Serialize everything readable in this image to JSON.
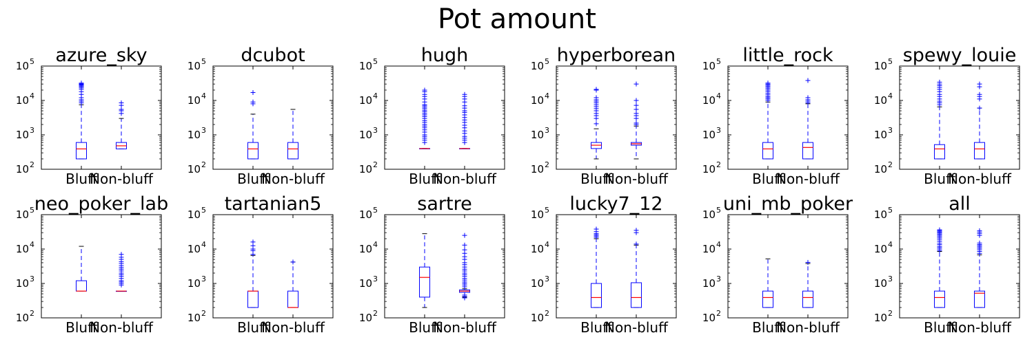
{
  "chart_data": {
    "type": "boxplot",
    "title": "Pot amount",
    "yscale": "log",
    "ylim": [
      100,
      100000
    ],
    "yticks": [
      {
        "base": "10",
        "exp": "2"
      },
      {
        "base": "10",
        "exp": "3"
      },
      {
        "base": "10",
        "exp": "4"
      },
      {
        "base": "10",
        "exp": "5"
      }
    ],
    "categories": [
      "Bluff",
      "Non-bluff"
    ],
    "colors": {
      "box": "#0000ff",
      "median": "#ff0000",
      "axes": "#000000"
    },
    "panels": [
      {
        "title": "azure_sky",
        "boxes": [
          {
            "min": 200,
            "q1": 200,
            "median": 390,
            "q3": 600,
            "max": 7500,
            "fliers": [
              8500,
              9500,
              10500,
              12000,
              15000,
              18000,
              21000,
              23000,
              25000,
              26500,
              28000,
              29500,
              31000,
              32000
            ]
          },
          {
            "min": 390,
            "q1": 390,
            "median": 480,
            "q3": 600,
            "max": 3000,
            "fliers": [
              4200,
              5000,
              5500,
              7200,
              8500
            ]
          }
        ]
      },
      {
        "title": "dcubot",
        "boxes": [
          {
            "min": 200,
            "q1": 200,
            "median": 390,
            "q3": 600,
            "max": 4000,
            "fliers": [
              8000,
              9000,
              17000
            ]
          },
          {
            "min": 200,
            "q1": 200,
            "median": 390,
            "q3": 600,
            "max": 5500,
            "fliers": []
          }
        ]
      },
      {
        "title": "hugh",
        "boxes": [
          {
            "min": 400,
            "q1": 400,
            "median": 400,
            "q3": 400,
            "max": 400,
            "fliers": [
              600,
              700,
              800,
              900,
              1000,
              1200,
              1400,
              1600,
              1800,
              2000,
              2300,
              2600,
              3000,
              3400,
              3800,
              4200,
              4700,
              5200,
              5800,
              6400,
              7000,
              7600,
              9000,
              11000,
              13000,
              15000,
              18000,
              20000
            ]
          },
          {
            "min": 400,
            "q1": 400,
            "median": 400,
            "q3": 400,
            "max": 400,
            "fliers": [
              600,
              700,
              800,
              900,
              1100,
              1300,
              1600,
              1900,
              2300,
              2700,
              3200,
              3800,
              4500,
              5000,
              6000,
              7000,
              9000,
              11000,
              13000,
              15000
            ]
          }
        ]
      },
      {
        "title": "hyperborean",
        "boxes": [
          {
            "min": 200,
            "q1": 400,
            "median": 500,
            "q3": 600,
            "max": 1500,
            "fliers": [
              2100,
              3000,
              3600,
              4200,
              5000,
              5800,
              6600,
              7500,
              8500,
              9500,
              10500,
              12000,
              20000,
              21000
            ]
          },
          {
            "min": 200,
            "q1": 500,
            "median": 550,
            "q3": 600,
            "max": 1800,
            "fliers": [
              2000,
              2200,
              3000,
              3600,
              4200,
              5500,
              7200,
              10000,
              30000
            ]
          }
        ]
      },
      {
        "title": "little_rock",
        "boxes": [
          {
            "min": 200,
            "q1": 200,
            "median": 390,
            "q3": 600,
            "max": 9000,
            "fliers": [
              10000,
              11000,
              12000,
              13000,
              14500,
              16000,
              18000,
              20000,
              22000,
              24000,
              26000,
              28000,
              30000,
              32000
            ]
          },
          {
            "min": 200,
            "q1": 200,
            "median": 430,
            "q3": 600,
            "max": 8000,
            "fliers": [
              8500,
              9500,
              10500,
              12000,
              38000
            ]
          }
        ]
      },
      {
        "title": "spewy_louie",
        "boxes": [
          {
            "min": 200,
            "q1": 200,
            "median": 390,
            "q3": 520,
            "max": 6500,
            "fliers": [
              7500,
              8500,
              9500,
              11000,
              13000,
              15000,
              18000,
              21000,
              24000,
              27000,
              30000,
              34000
            ]
          },
          {
            "min": 200,
            "q1": 200,
            "median": 390,
            "q3": 600,
            "max": 6000,
            "fliers": [
              6000,
              11000,
              13000,
              15000,
              25000,
              30000
            ]
          }
        ]
      },
      {
        "title": "neo_poker_lab",
        "boxes": [
          {
            "min": 600,
            "q1": 600,
            "median": 600,
            "q3": 1200,
            "max": 12000,
            "fliers": []
          },
          {
            "min": 600,
            "q1": 600,
            "median": 600,
            "q3": 600,
            "max": 600,
            "fliers": [
              900,
              1000,
              1100,
              1200,
              1400,
              1600,
              1800,
              2000,
              2300,
              2600,
              2900,
              3300,
              3800,
              4300,
              5000,
              5800,
              7000
            ]
          }
        ]
      },
      {
        "title": "tartanian5",
        "boxes": [
          {
            "min": 200,
            "q1": 200,
            "median": 600,
            "q3": 600,
            "max": 6500,
            "fliers": [
              7000,
              9000,
              10000,
              12500,
              16000
            ]
          },
          {
            "min": 200,
            "q1": 200,
            "median": 200,
            "q3": 600,
            "max": 4200,
            "fliers": [
              4200
            ]
          }
        ]
      },
      {
        "title": "sartre",
        "boxes": [
          {
            "min": 200,
            "q1": 400,
            "median": 1500,
            "q3": 3000,
            "max": 28000,
            "fliers": []
          },
          {
            "min": 400,
            "q1": 550,
            "median": 600,
            "q3": 650,
            "max": 700,
            "fliers": [
              380,
              420,
              460,
              800,
              900,
              1000,
              1100,
              1250,
              1400,
              1600,
              1800,
              2000,
              2300,
              2600,
              3000,
              3500,
              4000,
              5000,
              6000,
              7500,
              9500,
              13000,
              25000
            ]
          }
        ]
      },
      {
        "title": "lucky7_12",
        "boxes": [
          {
            "min": 200,
            "q1": 200,
            "median": 390,
            "q3": 1000,
            "max": 20000,
            "fliers": [
              22000,
              24000,
              26000,
              28000,
              32000,
              38000
            ]
          },
          {
            "min": 200,
            "q1": 200,
            "median": 390,
            "q3": 1050,
            "max": 13000,
            "fliers": [
              14000,
              30000,
              35000
            ]
          }
        ]
      },
      {
        "title": "uni_mb_poker",
        "boxes": [
          {
            "min": 200,
            "q1": 200,
            "median": 390,
            "q3": 600,
            "max": 5200,
            "fliers": []
          },
          {
            "min": 200,
            "q1": 200,
            "median": 390,
            "q3": 600,
            "max": 3800,
            "fliers": [
              4100
            ]
          }
        ]
      },
      {
        "title": "all",
        "boxes": [
          {
            "min": 200,
            "q1": 200,
            "median": 390,
            "q3": 600,
            "max": 8500,
            "fliers": [
              9000,
              10000,
              11000,
              12000,
              13500,
              15000,
              17000,
              19000,
              21000,
              23000,
              25000,
              27000,
              29000,
              31000,
              33000,
              35000,
              36000
            ]
          },
          {
            "min": 200,
            "q1": 200,
            "median": 520,
            "q3": 600,
            "max": 6800,
            "fliers": [
              7500,
              8500,
              9500,
              10500,
              11500,
              12500,
              13500,
              15000,
              25000,
              28000,
              31000,
              34000
            ]
          }
        ]
      }
    ]
  }
}
